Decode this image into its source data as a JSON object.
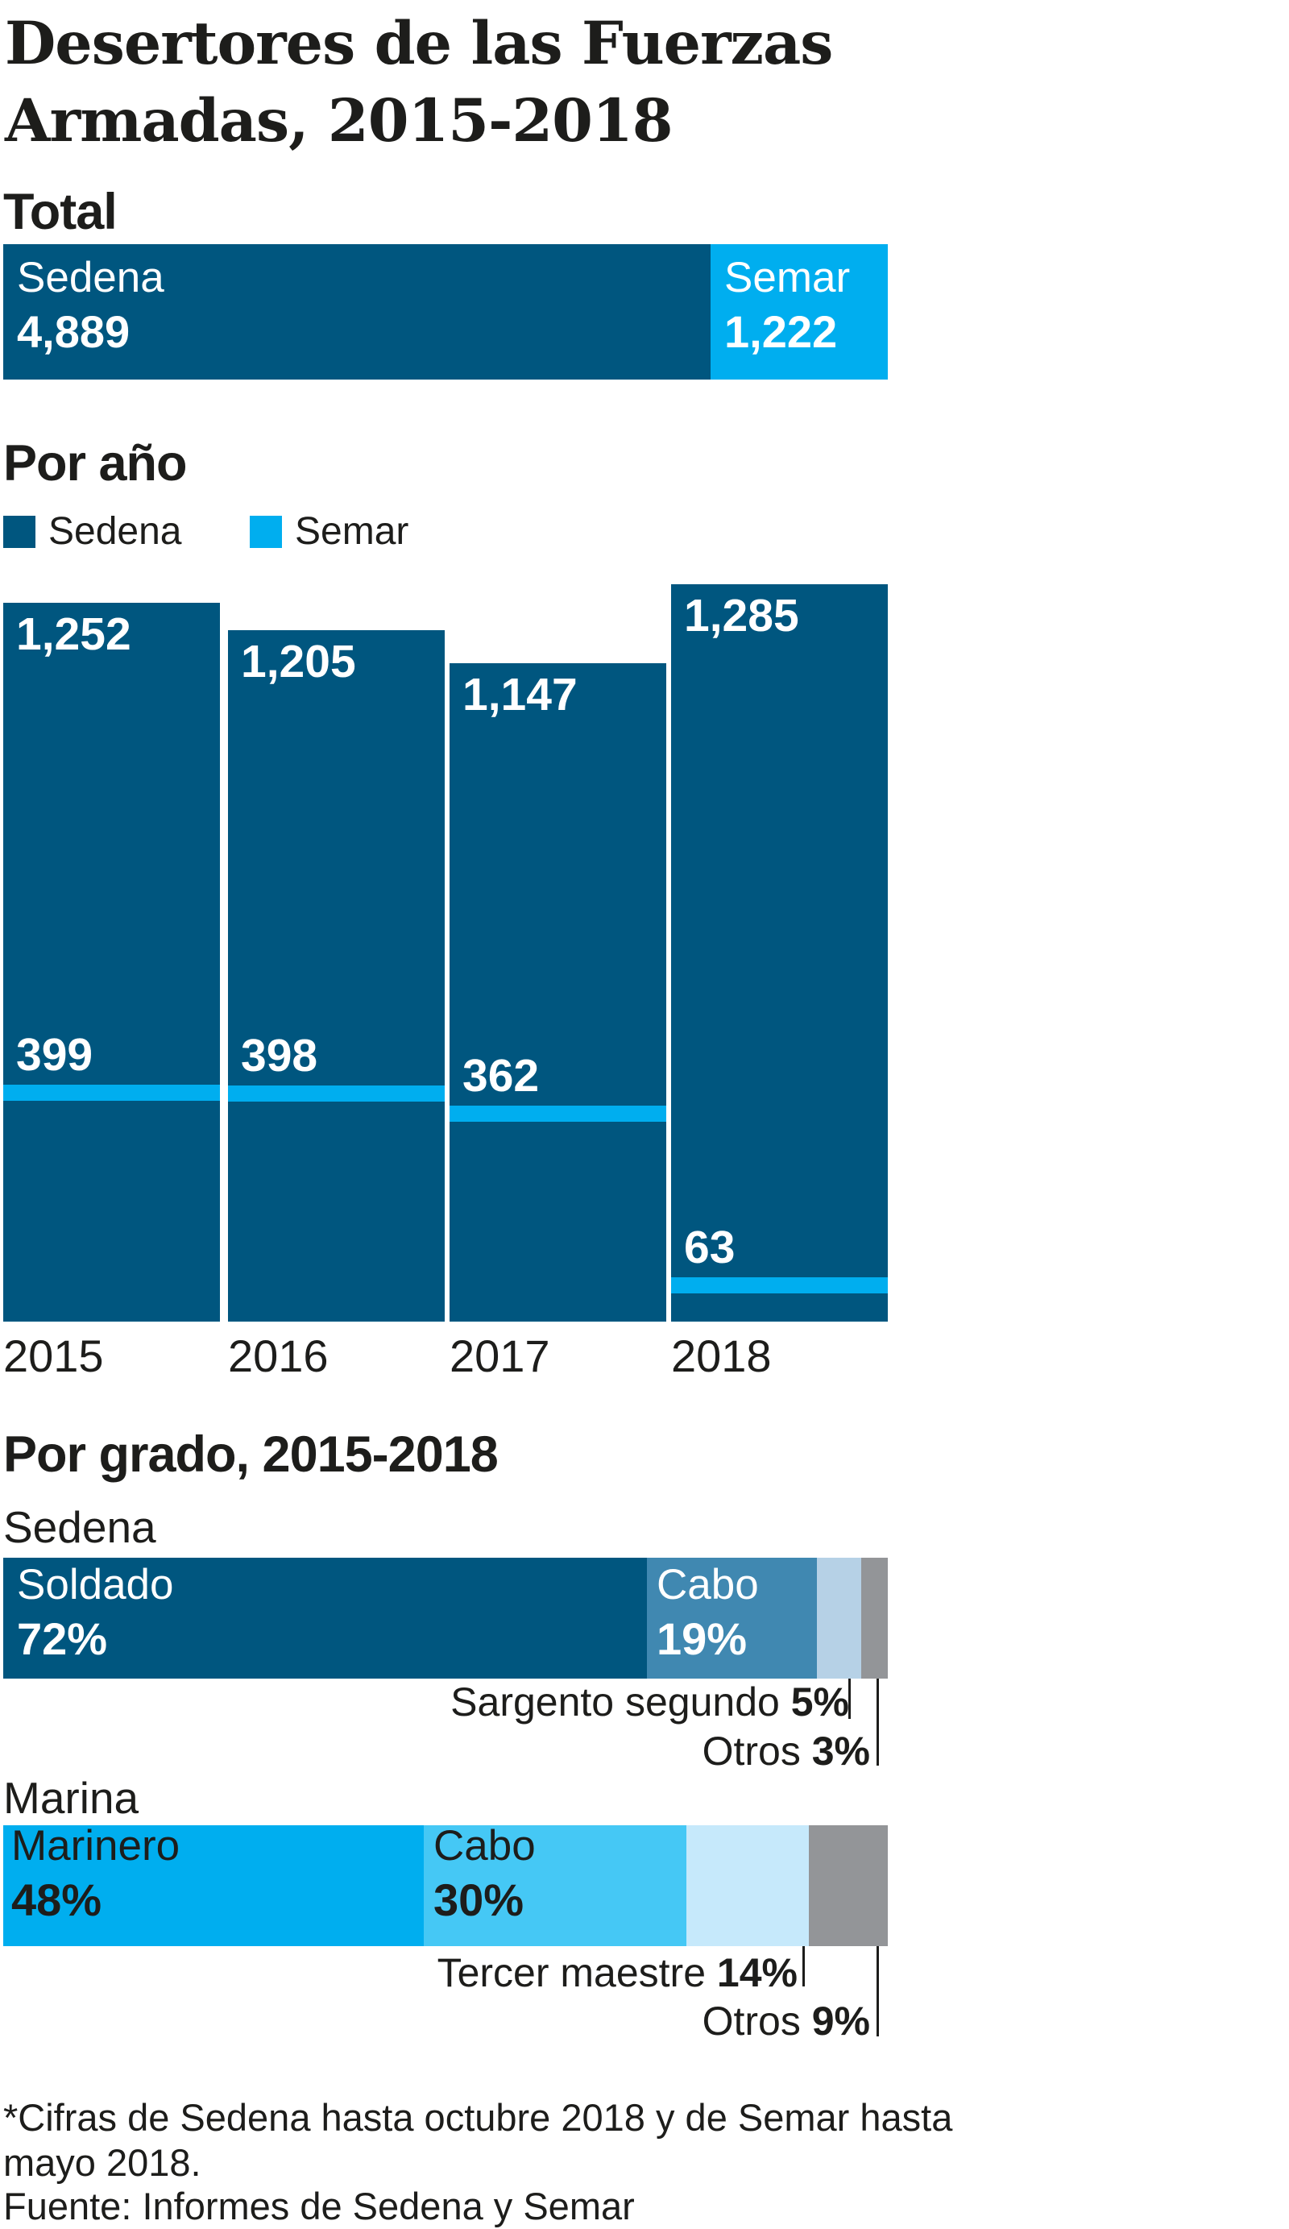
{
  "title": "Desertores de las Fuerzas Armadas, 2015-2018",
  "colors": {
    "sedena": "#00567f",
    "semar": "#00aeef",
    "sedena_cabo": "#4088b1",
    "sedena_sargento": "#b6d1e6",
    "otros": "#939598",
    "marina_cabo": "#45c8f5",
    "marina_tercer": "#c6e9fb"
  },
  "total": {
    "heading": "Total",
    "sedena": {
      "label": "Sedena",
      "value": "4,889"
    },
    "semar": {
      "label": "Semar",
      "value": "1,222"
    }
  },
  "por_anio": {
    "heading": "Por año",
    "legend": [
      "Sedena",
      "Semar"
    ]
  },
  "por_grado": {
    "heading": "Por grado, 2015-2018",
    "sedena": {
      "label": "Sedena",
      "soldado": {
        "label": "Soldado",
        "value": "72%"
      },
      "cabo": {
        "label": "Cabo",
        "value": "19%"
      },
      "sargento": {
        "label": "Sargento segundo",
        "value": "5%"
      },
      "otros": {
        "label": "Otros",
        "value": "3%"
      }
    },
    "marina": {
      "label": "Marina",
      "marinero": {
        "label": "Marinero",
        "value": "48%"
      },
      "cabo": {
        "label": "Cabo",
        "value": "30%"
      },
      "tercer": {
        "label": "Tercer maestre",
        "value": "14%"
      },
      "otros": {
        "label": "Otros",
        "value": "9%"
      }
    }
  },
  "footer": {
    "note": "*Cifras de Sedena hasta octubre 2018 y de Semar hasta mayo 2018.",
    "source": "Fuente: Informes de Sedena y Semar"
  },
  "chart_data": [
    {
      "type": "bar",
      "title": "Total",
      "categories": [
        "Sedena",
        "Semar"
      ],
      "values": [
        4889,
        1222
      ],
      "orientation": "horizontal-stacked"
    },
    {
      "type": "bar",
      "title": "Por año",
      "categories": [
        "2015",
        "2016",
        "2017",
        "2018"
      ],
      "series": [
        {
          "name": "Sedena",
          "values": [
            1252,
            1205,
            1147,
            1285
          ],
          "labels": [
            "1,252",
            "1,205",
            "1,147",
            "1,285"
          ]
        },
        {
          "name": "Semar",
          "values": [
            399,
            398,
            362,
            63
          ],
          "labels": [
            "399",
            "398",
            "362",
            "63"
          ]
        }
      ],
      "ylim": [
        0,
        1300
      ],
      "legend": "top-left"
    },
    {
      "type": "bar",
      "title": "Por grado, 2015-2018 — Sedena",
      "categories": [
        "Soldado",
        "Cabo",
        "Sargento segundo",
        "Otros"
      ],
      "values": [
        72,
        19,
        5,
        3
      ],
      "orientation": "horizontal-stacked"
    },
    {
      "type": "bar",
      "title": "Por grado, 2015-2018 — Marina",
      "categories": [
        "Marinero",
        "Cabo",
        "Tercer maestre",
        "Otros"
      ],
      "values": [
        48,
        30,
        14,
        9
      ],
      "orientation": "horizontal-stacked"
    }
  ]
}
